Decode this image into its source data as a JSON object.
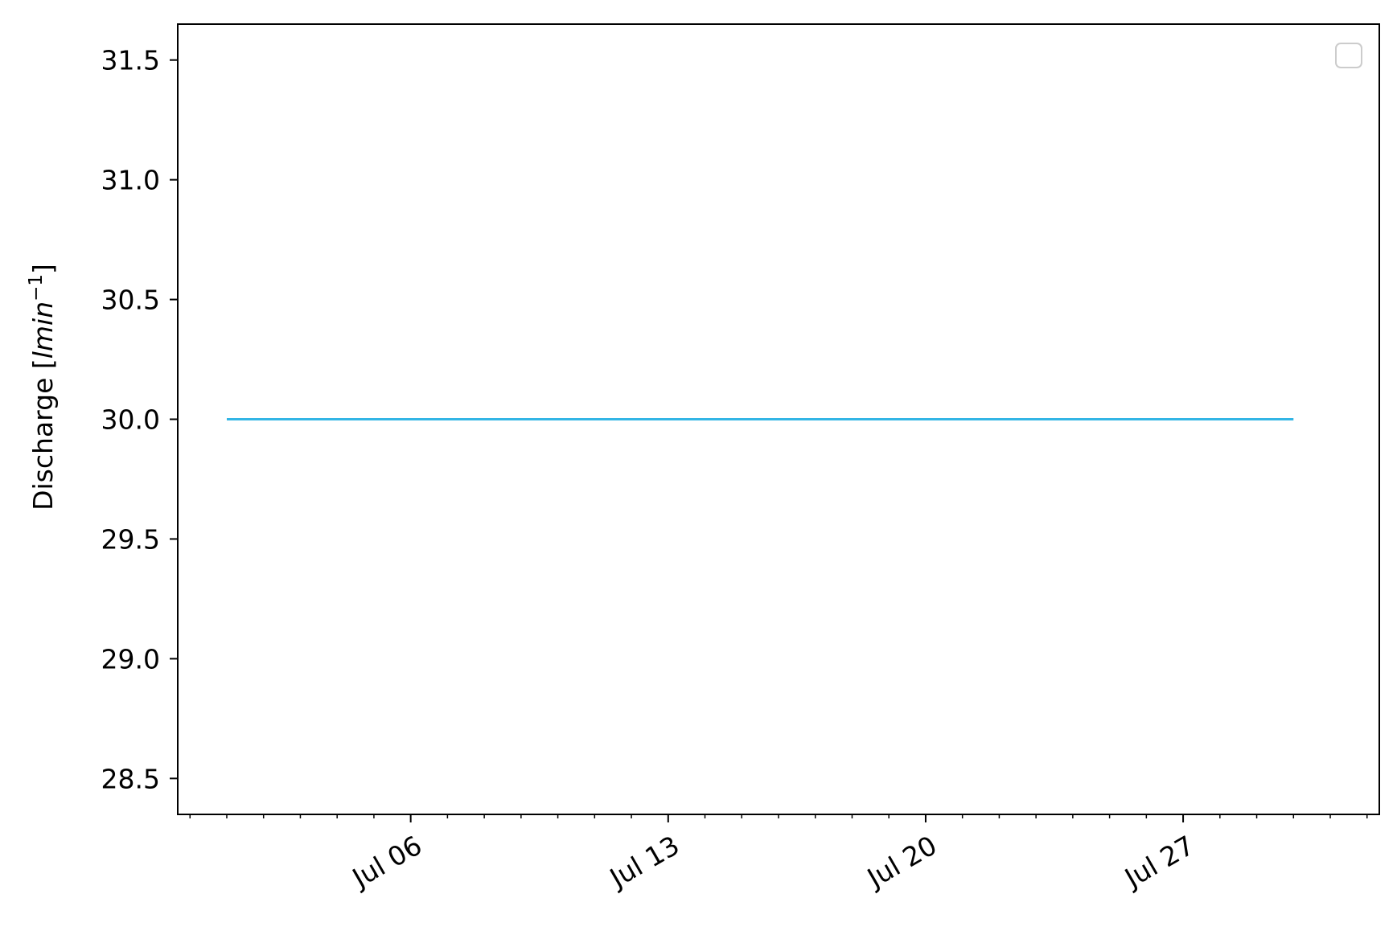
{
  "chart_data": {
    "type": "line",
    "title": "",
    "xlabel": "",
    "ylabel": "Discharge [",
    "ylabel_unit": "lmin",
    "ylabel_unit_exponent": "−1",
    "ylabel_close": "]",
    "x_axis_type": "date",
    "xlim": [
      "2023-06-29T16:00",
      "2023-08-01T08:00"
    ],
    "ylim": [
      28.35,
      31.65
    ],
    "yticks": [
      28.5,
      29.0,
      29.5,
      30.0,
      30.5,
      31.0,
      31.5
    ],
    "ytick_labels": [
      "28.5",
      "29.0",
      "29.5",
      "30.0",
      "30.5",
      "31.0",
      "31.5"
    ],
    "xticks": [
      "2023-07-06",
      "2023-07-13",
      "2023-07-20",
      "2023-07-27"
    ],
    "xtick_labels": [
      "Jul 06",
      "Jul 13",
      "Jul 20",
      "Jul 27"
    ],
    "x_minor_ticks": "daily",
    "grid": false,
    "legend": {
      "placement": "top-right",
      "entries": []
    },
    "series": [
      {
        "color": "#33b5e5",
        "x": [
          "2023-07-01",
          "2023-07-30"
        ],
        "y": [
          30.0,
          30.0
        ]
      }
    ]
  }
}
